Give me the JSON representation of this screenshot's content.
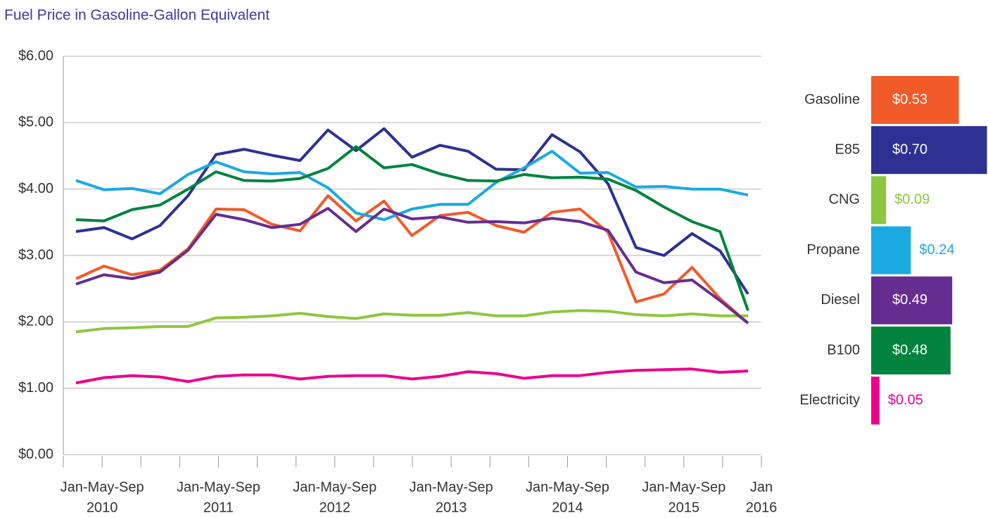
{
  "chart_data": [
    {
      "type": "line",
      "title": "Fuel Price in Gasoline-Gallon Equivalent",
      "x_labels": [
        {
          "months": "Jan-May-Sep",
          "year": "2010"
        },
        {
          "months": "Jan-May-Sep",
          "year": "2011"
        },
        {
          "months": "Jan-May-Sep",
          "year": "2012"
        },
        {
          "months": "Jan-May-Sep",
          "year": "2013"
        },
        {
          "months": "Jan-May-Sep",
          "year": "2014"
        },
        {
          "months": "Jan-May-Sep",
          "year": "2015"
        },
        {
          "months": "Jan",
          "year": "2016"
        }
      ],
      "ylim": [
        0,
        6
      ],
      "yticks": [
        {
          "value": 0,
          "label": "$0.00"
        },
        {
          "value": 1,
          "label": "$1.00"
        },
        {
          "value": 2,
          "label": "$2.00"
        },
        {
          "value": 3,
          "label": "$3.00"
        },
        {
          "value": 4,
          "label": "$4.00"
        },
        {
          "value": 5,
          "label": "$5.00"
        },
        {
          "value": 6,
          "label": "$6.00"
        }
      ],
      "grid": true,
      "series": [
        {
          "name": "Gasoline",
          "color": "#f15a29",
          "values": [
            2.65,
            2.84,
            2.71,
            2.78,
            3.1,
            3.7,
            3.69,
            3.47,
            3.37,
            3.9,
            3.52,
            3.82,
            3.3,
            3.6,
            3.65,
            3.45,
            3.35,
            3.65,
            3.7,
            3.35,
            2.3,
            2.42,
            2.82,
            2.35,
            1.98
          ]
        },
        {
          "name": "E85",
          "color": "#2e3192",
          "values": [
            3.36,
            3.42,
            3.25,
            3.45,
            3.9,
            4.52,
            4.6,
            4.51,
            4.43,
            4.89,
            4.58,
            4.91,
            4.48,
            4.66,
            4.57,
            4.3,
            4.29,
            4.82,
            4.56,
            4.08,
            3.12,
            3.0,
            3.33,
            3.07,
            2.42
          ]
        },
        {
          "name": "CNG",
          "color": "#8dc63f",
          "values": [
            1.85,
            1.9,
            1.91,
            1.93,
            1.93,
            2.06,
            2.07,
            2.09,
            2.13,
            2.08,
            2.05,
            2.12,
            2.1,
            2.1,
            2.14,
            2.09,
            2.09,
            2.15,
            2.17,
            2.16,
            2.11,
            2.09,
            2.12,
            2.09,
            2.09
          ]
        },
        {
          "name": "Propane",
          "color": "#1ba9e1",
          "values": [
            4.13,
            3.99,
            4.01,
            3.93,
            4.22,
            4.41,
            4.26,
            4.23,
            4.25,
            4.02,
            3.64,
            3.54,
            3.7,
            3.77,
            3.77,
            4.1,
            4.32,
            4.57,
            4.24,
            4.25,
            4.03,
            4.04,
            4.0,
            4.0,
            3.91
          ]
        },
        {
          "name": "Diesel",
          "color": "#662d91",
          "values": [
            2.57,
            2.71,
            2.65,
            2.75,
            3.08,
            3.62,
            3.54,
            3.42,
            3.47,
            3.71,
            3.36,
            3.7,
            3.55,
            3.58,
            3.5,
            3.51,
            3.49,
            3.56,
            3.51,
            3.38,
            2.75,
            2.59,
            2.63,
            2.32,
            1.98
          ]
        },
        {
          "name": "B100",
          "color": "#00843d",
          "values": [
            3.54,
            3.52,
            3.69,
            3.76,
            4.0,
            4.26,
            4.13,
            4.12,
            4.16,
            4.31,
            4.64,
            4.32,
            4.37,
            4.23,
            4.13,
            4.12,
            4.22,
            4.17,
            4.18,
            4.15,
            3.98,
            3.73,
            3.51,
            3.36,
            2.17
          ]
        },
        {
          "name": "Electricity",
          "color": "#ec008c",
          "values": [
            1.08,
            1.16,
            1.19,
            1.17,
            1.1,
            1.18,
            1.2,
            1.2,
            1.14,
            1.18,
            1.19,
            1.19,
            1.14,
            1.18,
            1.25,
            1.22,
            1.15,
            1.19,
            1.19,
            1.24,
            1.27,
            1.28,
            1.29,
            1.24,
            1.26
          ]
        }
      ]
    },
    {
      "type": "hbar",
      "categories": [
        "Gasoline",
        "E85",
        "CNG",
        "Propane",
        "Diesel",
        "B100",
        "Electricity"
      ],
      "values": [
        0.53,
        0.7,
        0.09,
        0.24,
        0.49,
        0.48,
        0.05
      ],
      "value_labels": [
        "$0.53",
        "$0.70",
        "$0.09",
        "$0.24",
        "$0.49",
        "$0.48",
        "$0.05"
      ],
      "colors": [
        "#f15a29",
        "#2e3192",
        "#8dc63f",
        "#1ba9e1",
        "#662d91",
        "#00843d",
        "#ec008c"
      ]
    }
  ]
}
